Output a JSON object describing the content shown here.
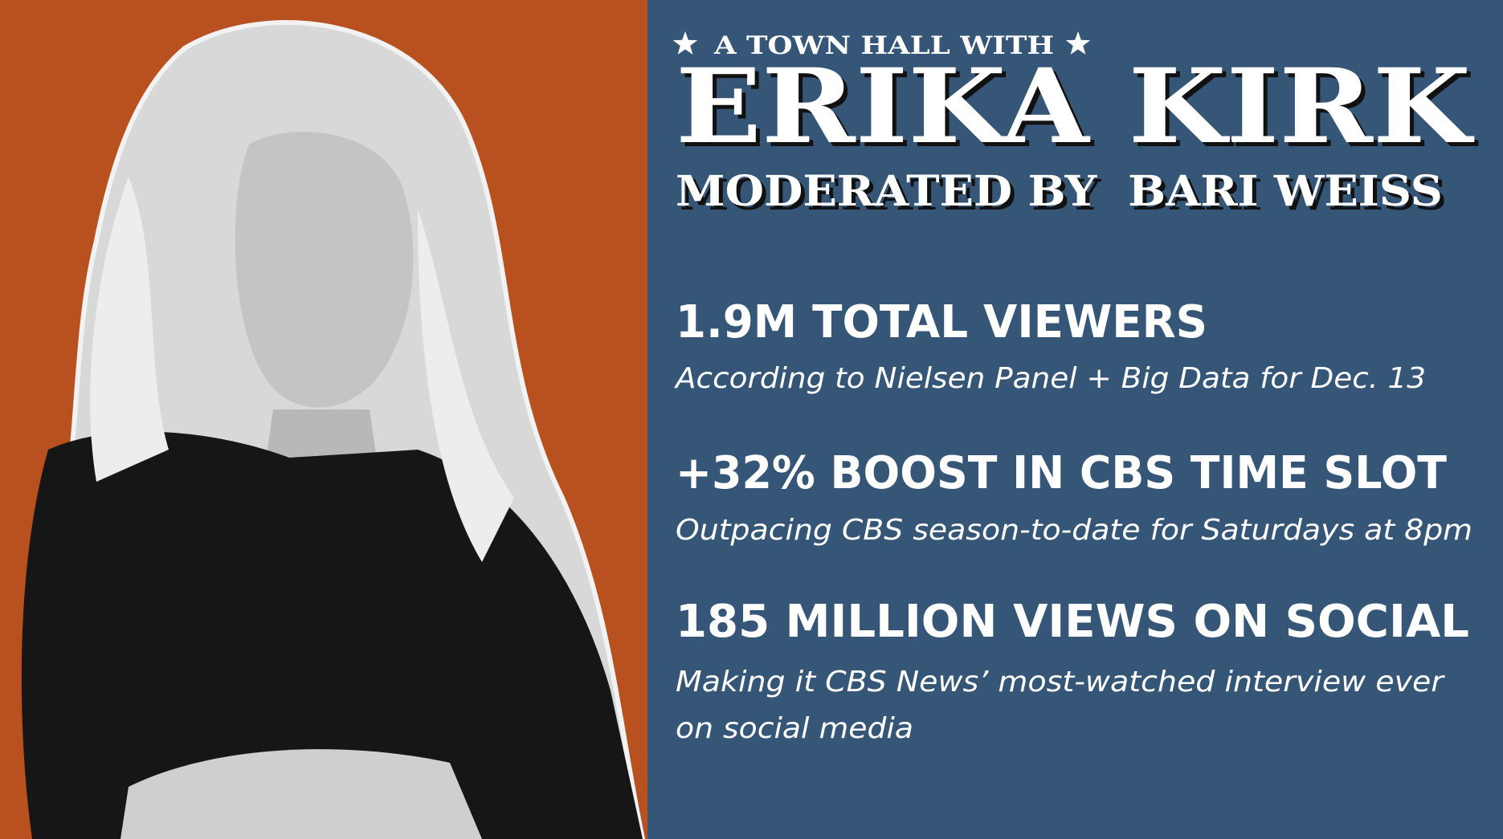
{
  "header": {
    "kicker": "A TOWN HALL WITH",
    "name": "ERIKA KIRK",
    "moderator": "MODERATED BY  BARI WEISS"
  },
  "stats": [
    {
      "headline": "1.9M TOTAL VIEWERS",
      "detail": [
        "According to Nielsen Panel + Big Data for Dec. 13"
      ]
    },
    {
      "headline": "+32% BOOST IN CBS TIME SLOT",
      "detail": [
        "Outpacing CBS season-to-date for Saturdays at 8pm"
      ]
    },
    {
      "headline": "185 MILLION VIEWS ON SOCIAL",
      "detail": [
        "Making it CBS News’ most-watched interview ever",
        "on social media"
      ]
    }
  ]
}
